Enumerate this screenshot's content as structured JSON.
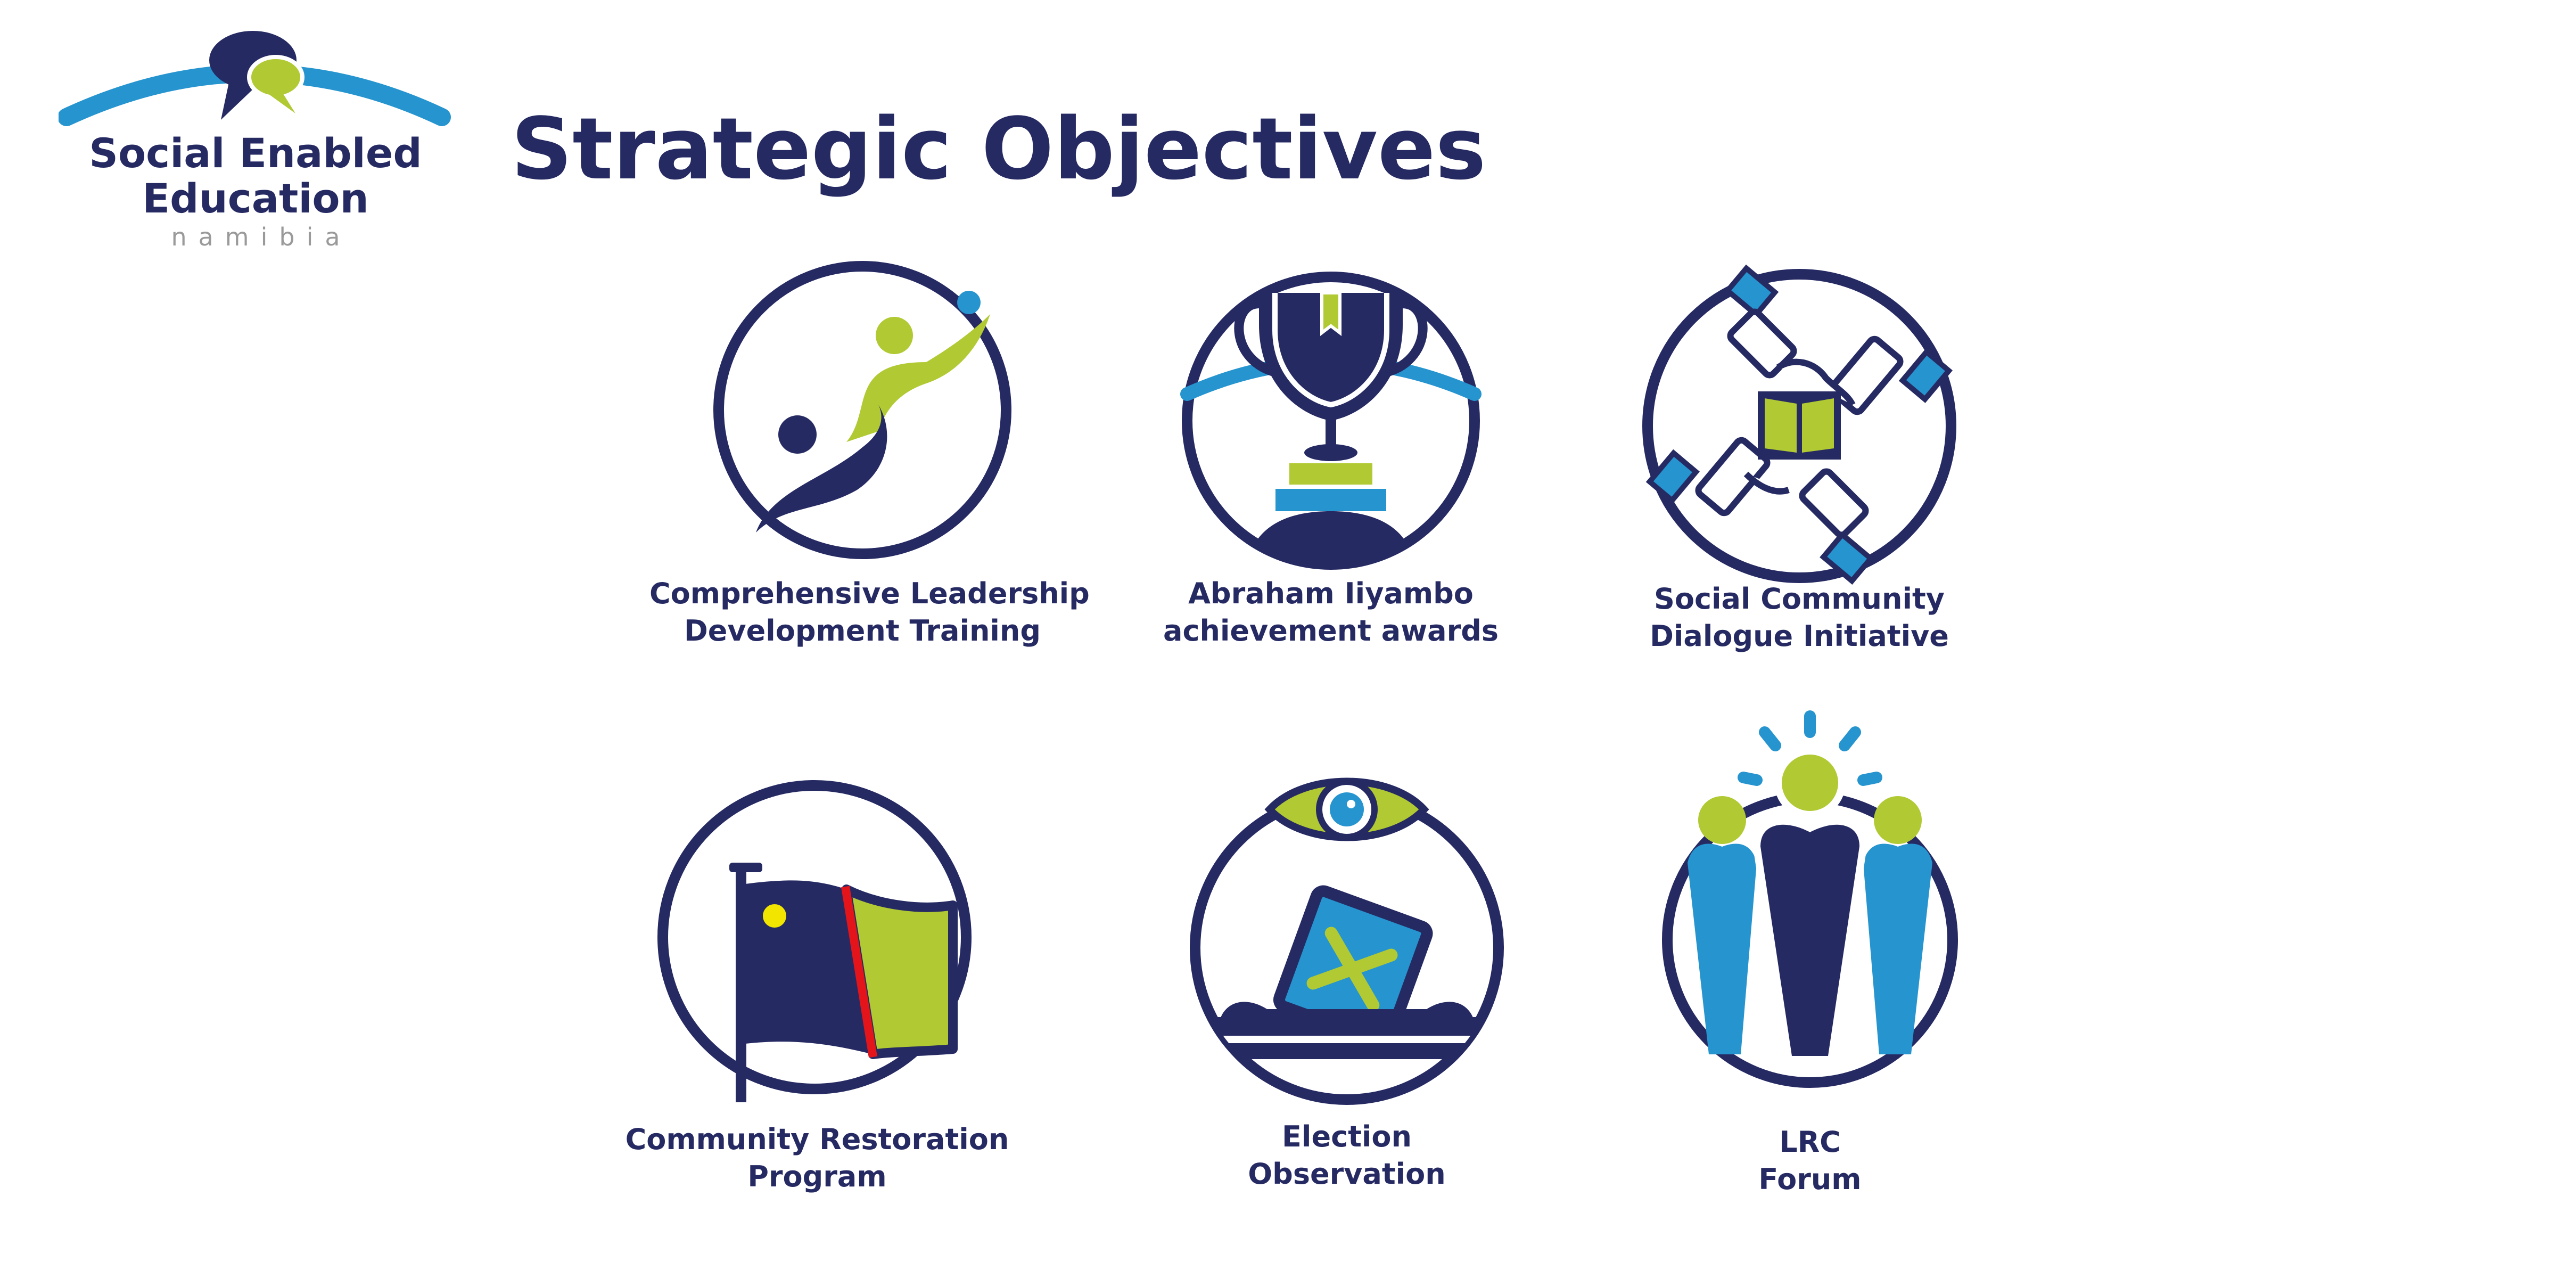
{
  "brand": {
    "line1": "Social Enabled",
    "line2": "Education",
    "sub": "namibia"
  },
  "page_title": "Strategic Objectives",
  "colors": {
    "navy": "#262a63",
    "blue": "#2594cf",
    "green": "#b1c932",
    "red": "#e3151b",
    "yellow": "#f2e600"
  },
  "objectives": [
    {
      "icon": "leadership-figure-icon",
      "line1": "Comprehensive Leadership",
      "line2": "Development Training"
    },
    {
      "icon": "trophy-icon",
      "line1": "Abraham Iiyambo",
      "line2": "achievement  awards"
    },
    {
      "icon": "handshake-book-icon",
      "line1": "Social Community",
      "line2": "Dialogue Initiative"
    },
    {
      "icon": "flag-icon",
      "line1": "Community Restoration",
      "line2": "Program"
    },
    {
      "icon": "ballot-eye-icon",
      "line1": "Election",
      "line2": "Observation"
    },
    {
      "icon": "people-group-icon",
      "line1": "LRC",
      "line2": "Forum"
    }
  ]
}
